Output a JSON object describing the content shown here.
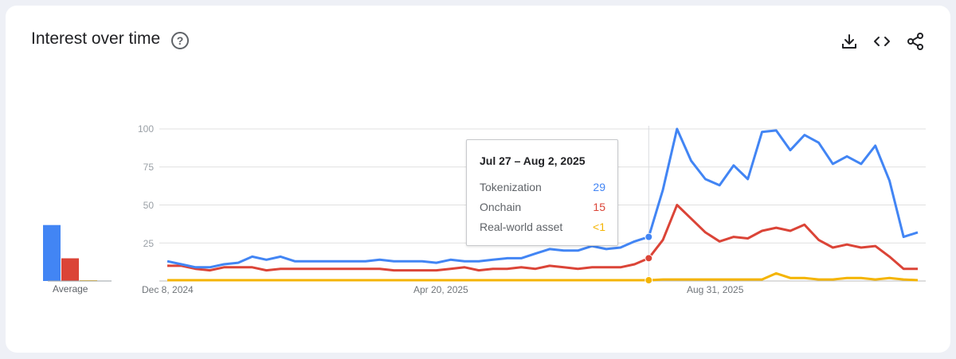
{
  "header": {
    "title": "Interest over time",
    "help_icon": "question-circle-icon",
    "actions": [
      "download-icon",
      "embed-code-icon",
      "share-icon"
    ]
  },
  "average": {
    "label": "Average",
    "values": [
      37,
      15,
      0.5
    ]
  },
  "tooltip": {
    "date": "Jul 27 – Aug 2, 2025",
    "rows": [
      {
        "name": "Tokenization",
        "value": "29",
        "color": "#4285f4"
      },
      {
        "name": "Onchain",
        "value": "15",
        "color": "#db4437"
      },
      {
        "name": "Real-world asset",
        "value": "<1",
        "color": "#f4b400"
      }
    ]
  },
  "chart_data": {
    "type": "line",
    "title": "Interest over time",
    "ylim": [
      0,
      100
    ],
    "yticks": [
      "100",
      "75",
      "50",
      "25"
    ],
    "xtick_labels": [
      "Dec 8, 2024",
      "Apr 20, 2025",
      "Aug 31, 2025"
    ],
    "grid": true,
    "highlight_index": 34,
    "colors": {
      "Tokenization": "#4285f4",
      "Onchain": "#db4437",
      "Real-world asset": "#f4b400"
    },
    "series": [
      {
        "name": "Tokenization",
        "values": [
          13,
          11,
          9,
          9,
          11,
          12,
          16,
          14,
          16,
          13,
          13,
          13,
          13,
          13,
          13,
          14,
          13,
          13,
          13,
          12,
          14,
          13,
          13,
          14,
          15,
          15,
          18,
          21,
          20,
          20,
          23,
          21,
          22,
          26,
          29,
          60,
          100,
          79,
          67,
          63,
          76,
          67,
          98,
          99,
          86,
          96,
          91,
          77,
          82,
          77,
          89,
          66,
          29,
          32
        ]
      },
      {
        "name": "Onchain",
        "values": [
          10,
          10,
          8,
          7,
          9,
          9,
          9,
          7,
          8,
          8,
          8,
          8,
          8,
          8,
          8,
          8,
          7,
          7,
          7,
          7,
          8,
          9,
          7,
          8,
          8,
          9,
          8,
          10,
          9,
          8,
          9,
          9,
          9,
          11,
          15,
          27,
          50,
          41,
          32,
          26,
          29,
          28,
          33,
          35,
          33,
          37,
          27,
          22,
          24,
          22,
          23,
          16,
          8,
          8
        ]
      },
      {
        "name": "Real-world asset",
        "values": [
          0.5,
          0.5,
          0.5,
          0.5,
          0.5,
          0.5,
          0.5,
          0.5,
          0.5,
          0.5,
          0.5,
          0.5,
          0.5,
          0.5,
          0.5,
          0.5,
          0.5,
          0.5,
          0.5,
          0.5,
          0.5,
          0.5,
          0.5,
          0.5,
          0.5,
          0.5,
          0.5,
          0.5,
          0.5,
          0.5,
          0.5,
          0.5,
          0.5,
          0.5,
          0.5,
          1,
          1,
          1,
          1,
          1,
          1,
          1,
          1,
          5,
          2,
          2,
          1,
          1,
          2,
          2,
          1,
          2,
          1,
          0.5
        ]
      }
    ]
  }
}
